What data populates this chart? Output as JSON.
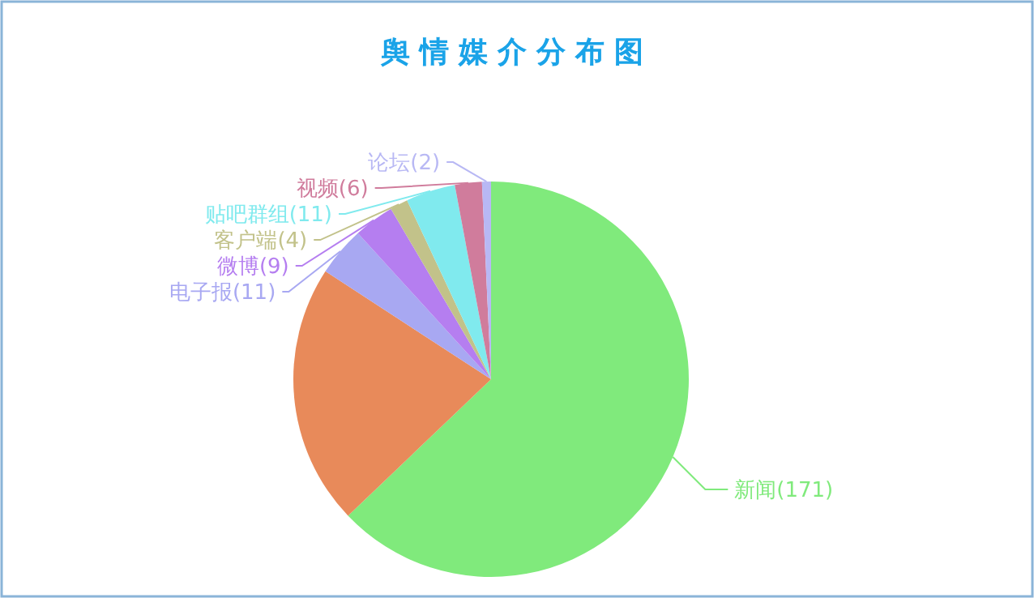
{
  "chart_data": {
    "type": "pie",
    "title": "舆情媒介分布图",
    "categories": [
      "新闻(171)",
      null,
      "电子报(11)",
      "微博(9)",
      "客户端(4)",
      "贴吧群组(11)",
      "视频(6)",
      "论坛(2)"
    ],
    "values": [
      171,
      58,
      11,
      9,
      4,
      11,
      6,
      2
    ],
    "colors": [
      "#80ea7c",
      "#e88a5a",
      "#a8a8f2",
      "#b57ef0",
      "#c2c28a",
      "#80eaee",
      "#d07c9c",
      "#b8b8f4"
    ]
  }
}
